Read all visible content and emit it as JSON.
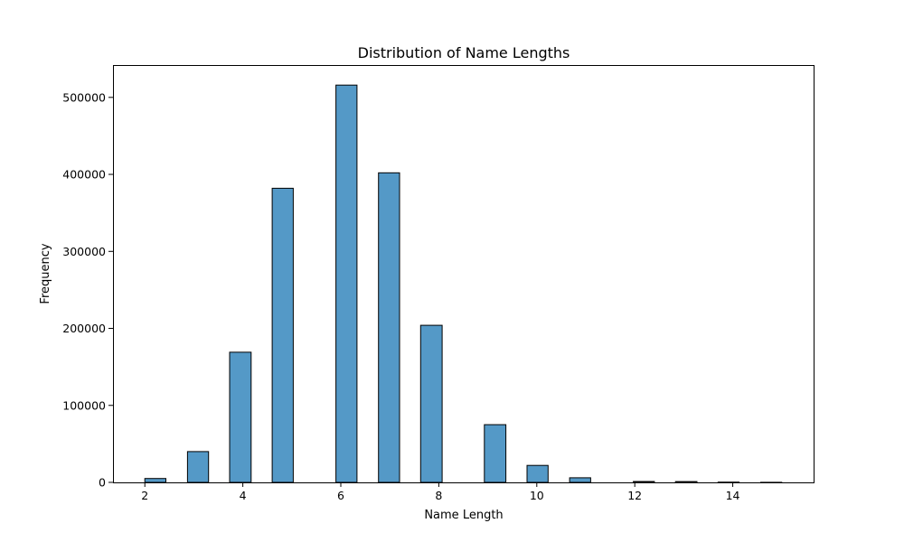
{
  "chart_data": {
    "type": "bar",
    "title": "Distribution of Name Lengths",
    "xlabel": "Name Length",
    "ylabel": "Frequency",
    "bar_color": "#5499c7",
    "edge_color": "#000000",
    "grid": false,
    "xlim": [
      1.35,
      15.65
    ],
    "ylim": [
      0,
      542000
    ],
    "x_ticks": [
      2,
      4,
      6,
      8,
      10,
      12,
      14
    ],
    "y_ticks": [
      0,
      100000,
      200000,
      300000,
      400000,
      500000
    ],
    "bins": [
      {
        "start": 2.0,
        "end": 2.43,
        "value": 5000
      },
      {
        "start": 2.87,
        "end": 3.3,
        "value": 40000
      },
      {
        "start": 3.73,
        "end": 4.17,
        "value": 169000
      },
      {
        "start": 4.6,
        "end": 5.03,
        "value": 382000
      },
      {
        "start": 5.9,
        "end": 6.33,
        "value": 516000
      },
      {
        "start": 6.77,
        "end": 7.2,
        "value": 402000
      },
      {
        "start": 7.63,
        "end": 8.07,
        "value": 204000
      },
      {
        "start": 8.93,
        "end": 9.37,
        "value": 75000
      },
      {
        "start": 9.8,
        "end": 10.23,
        "value": 22000
      },
      {
        "start": 10.67,
        "end": 11.1,
        "value": 6000
      },
      {
        "start": 11.97,
        "end": 12.4,
        "value": 1200
      },
      {
        "start": 12.83,
        "end": 13.27,
        "value": 1000
      },
      {
        "start": 13.7,
        "end": 14.13,
        "value": 300
      },
      {
        "start": 14.57,
        "end": 15.0,
        "value": 100
      }
    ]
  }
}
